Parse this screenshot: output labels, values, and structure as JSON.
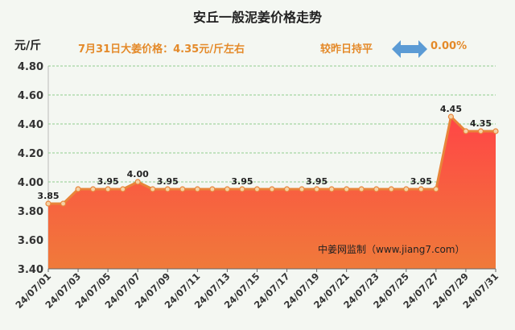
{
  "header": {
    "title": "安丘一般泥姜价格走势",
    "unit": "元/斤",
    "price_note": "7月31日大姜价格：4.35元/斤左右",
    "compare_note": "较昨日持平",
    "change": "0.00%",
    "arrow_icon": "double-arrow-icon"
  },
  "watermark": "中姜网监制（www.jiang7.com）",
  "colors": {
    "fill_top": "#ff4646",
    "fill_bottom": "#f07a3a",
    "line": "#e8853a",
    "marker_fill": "#f5d2a6",
    "grid": "#8fcc8f",
    "text_accent": "#e48a2a",
    "arrow": "#5b9bd5"
  },
  "chart_data": {
    "type": "area",
    "title": "安丘一般泥姜价格走势",
    "ylabel": "元/斤",
    "ylim": [
      3.4,
      4.8
    ],
    "yticks": [
      "4.80",
      "4.60",
      "4.40",
      "4.20",
      "4.00",
      "3.80",
      "3.60",
      "3.40"
    ],
    "x": [
      "24/07/01",
      "24/07/02",
      "24/07/03",
      "24/07/04",
      "24/07/05",
      "24/07/06",
      "24/07/07",
      "24/07/08",
      "24/07/09",
      "24/07/10",
      "24/07/11",
      "24/07/12",
      "24/07/13",
      "24/07/14",
      "24/07/15",
      "24/07/16",
      "24/07/17",
      "24/07/18",
      "24/07/19",
      "24/07/20",
      "24/07/21",
      "24/07/22",
      "24/07/23",
      "24/07/24",
      "24/07/25",
      "24/07/26",
      "24/07/27",
      "24/07/28",
      "24/07/29",
      "24/07/30",
      "24/07/31"
    ],
    "xticks": [
      "24/07/01",
      "24/07/03",
      "24/07/05",
      "24/07/07",
      "24/07/09",
      "24/07/11",
      "24/07/13",
      "24/07/15",
      "24/07/17",
      "24/07/19",
      "24/07/21",
      "24/07/23",
      "24/07/25",
      "24/07/27",
      "24/07/29",
      "24/07/31"
    ],
    "values": [
      3.85,
      3.85,
      3.95,
      3.95,
      3.95,
      3.95,
      4.0,
      3.95,
      3.95,
      3.95,
      3.95,
      3.95,
      3.95,
      3.95,
      3.95,
      3.95,
      3.95,
      3.95,
      3.95,
      3.95,
      3.95,
      3.95,
      3.95,
      3.95,
      3.95,
      3.95,
      3.95,
      4.45,
      4.35,
      4.35,
      4.35
    ],
    "data_labels": [
      {
        "x": "24/07/01",
        "text": "3.85"
      },
      {
        "x": "24/07/05",
        "text": "3.95"
      },
      {
        "x": "24/07/07",
        "text": "4.00"
      },
      {
        "x": "24/07/09",
        "text": "3.95"
      },
      {
        "x": "24/07/14",
        "text": "3.95"
      },
      {
        "x": "24/07/19",
        "text": "3.95"
      },
      {
        "x": "24/07/26",
        "text": "3.95"
      },
      {
        "x": "24/07/28",
        "text": "4.45"
      },
      {
        "x": "24/07/30",
        "text": "4.35"
      }
    ],
    "grid": true,
    "legend": "none"
  }
}
